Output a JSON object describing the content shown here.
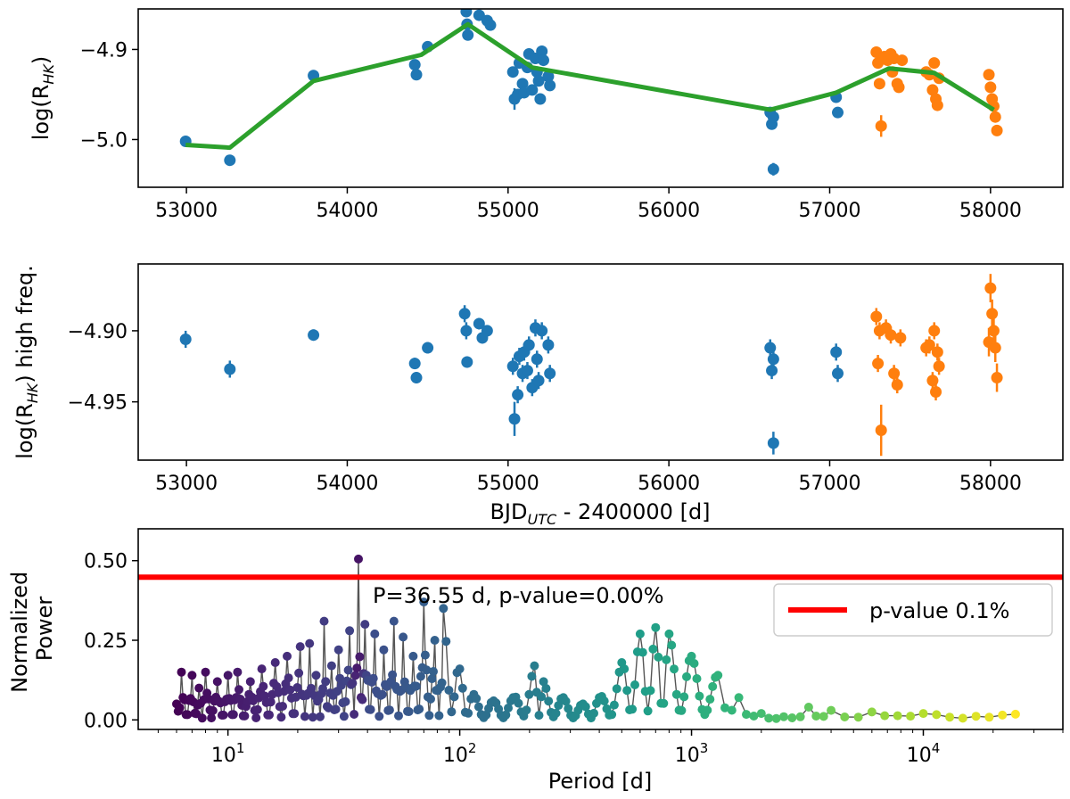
{
  "chart_data": [
    {
      "type": "scatter",
      "panel": "top",
      "ylabel_main": "log(R",
      "ylabel_sub": "HK",
      "ylabel_end": ")",
      "xlim": [
        52700,
        58450
      ],
      "ylim": [
        -5.053,
        -4.855
      ],
      "xticks": [
        53000,
        54000,
        55000,
        56000,
        57000,
        58000
      ],
      "xtick_labels": [
        "53000",
        "54000",
        "55000",
        "56000",
        "57000",
        "58000"
      ],
      "yticks": [
        -5.0,
        -4.9
      ],
      "ytick_labels": [
        "−5.0",
        "−4.9"
      ],
      "grid": false,
      "series": [
        {
          "color": "#1f77b4",
          "points": [
            [
              52995,
              -5.002,
              0.006
            ],
            [
              53270,
              -5.023,
              0.004
            ],
            [
              53790,
              -4.929,
              0.004
            ],
            [
              54420,
              -4.917,
              0.004
            ],
            [
              54430,
              -4.928,
              0.004
            ],
            [
              54500,
              -4.897,
              0.004
            ],
            [
              54730,
              -4.85,
              0.004
            ],
            [
              54740,
              -4.858,
              0.004
            ],
            [
              54745,
              -4.872,
              0.004
            ],
            [
              54750,
              -4.884,
              0.004
            ],
            [
              54820,
              -4.862,
              0.004
            ],
            [
              54870,
              -4.868,
              0.004
            ],
            [
              54890,
              -4.873,
              0.004
            ],
            [
              55030,
              -4.925,
              0.006
            ],
            [
              55040,
              -4.955,
              0.012
            ],
            [
              55060,
              -4.95,
              0.006
            ],
            [
              55070,
              -4.915,
              0.006
            ],
            [
              55090,
              -4.938,
              0.006
            ],
            [
              55100,
              -4.948,
              0.006
            ],
            [
              55120,
              -4.92,
              0.006
            ],
            [
              55130,
              -4.905,
              0.006
            ],
            [
              55150,
              -4.945,
              0.006
            ],
            [
              55170,
              -4.91,
              0.006
            ],
            [
              55180,
              -4.925,
              0.006
            ],
            [
              55190,
              -4.935,
              0.006
            ],
            [
              55200,
              -4.955,
              0.006
            ],
            [
              55210,
              -4.902,
              0.006
            ],
            [
              55220,
              -4.912,
              0.006
            ],
            [
              55250,
              -4.93,
              0.006
            ],
            [
              55260,
              -4.94,
              0.006
            ],
            [
              56630,
              -4.97,
              0.005
            ],
            [
              56640,
              -4.983,
              0.005
            ],
            [
              56650,
              -4.975,
              0.005
            ],
            [
              56650,
              -5.033,
              0.007
            ],
            [
              57040,
              -4.953,
              0.004
            ],
            [
              57050,
              -4.97,
              0.004
            ]
          ]
        },
        {
          "color": "#ff7f0e",
          "points": [
            [
              57290,
              -4.903,
              0.004
            ],
            [
              57300,
              -4.915,
              0.004
            ],
            [
              57310,
              -4.938,
              0.004
            ],
            [
              57320,
              -4.985,
              0.012
            ],
            [
              57340,
              -4.908,
              0.004
            ],
            [
              57360,
              -4.912,
              0.004
            ],
            [
              57380,
              -4.905,
              0.004
            ],
            [
              57390,
              -4.925,
              0.004
            ],
            [
              57400,
              -4.91,
              0.004
            ],
            [
              57420,
              -4.938,
              0.004
            ],
            [
              57430,
              -4.942,
              0.004
            ],
            [
              57450,
              -4.912,
              0.004
            ],
            [
              57600,
              -4.925,
              0.004
            ],
            [
              57620,
              -4.928,
              0.004
            ],
            [
              57640,
              -4.945,
              0.004
            ],
            [
              57650,
              -4.915,
              0.004
            ],
            [
              57660,
              -4.955,
              0.004
            ],
            [
              57670,
              -4.962,
              0.004
            ],
            [
              57680,
              -4.932,
              0.004
            ],
            [
              57990,
              -4.928,
              0.006
            ],
            [
              58000,
              -4.942,
              0.006
            ],
            [
              58010,
              -4.955,
              0.006
            ],
            [
              58020,
              -4.963,
              0.006
            ],
            [
              58030,
              -4.975,
              0.006
            ],
            [
              58040,
              -4.99,
              0.006
            ]
          ]
        },
        {
          "type": "line",
          "color": "#2ca02c",
          "points": [
            [
              52995,
              -5.006
            ],
            [
              53270,
              -5.009
            ],
            [
              53790,
              -4.935
            ],
            [
              54460,
              -4.906
            ],
            [
              54750,
              -4.872
            ],
            [
              55150,
              -4.92
            ],
            [
              56630,
              -4.967
            ],
            [
              57040,
              -4.948
            ],
            [
              57370,
              -4.921
            ],
            [
              57650,
              -4.926
            ],
            [
              58020,
              -4.967
            ]
          ]
        }
      ]
    },
    {
      "type": "scatter",
      "panel": "middle",
      "ylabel_main": "log(R",
      "ylabel_sub": "HK",
      "ylabel_end": ") high freq.",
      "xlabel_main": "BJD",
      "xlabel_sub": "UTC",
      "xlabel_end": " - 2400000 [d]",
      "xlim": [
        52700,
        58450
      ],
      "ylim": [
        -4.991,
        -4.853
      ],
      "xticks": [
        53000,
        54000,
        55000,
        56000,
        57000,
        58000
      ],
      "xtick_labels": [
        "53000",
        "54000",
        "55000",
        "56000",
        "57000",
        "58000"
      ],
      "yticks": [
        -4.95,
        -4.9
      ],
      "ytick_labels": [
        "−4.95",
        "−4.90"
      ],
      "grid": false,
      "series": [
        {
          "color": "#1f77b4",
          "points": [
            [
              52995,
              -4.906,
              0.006
            ],
            [
              53270,
              -4.927,
              0.006
            ],
            [
              53790,
              -4.903,
              0.004
            ],
            [
              54420,
              -4.923,
              0.004
            ],
            [
              54430,
              -4.933,
              0.004
            ],
            [
              54500,
              -4.912,
              0.004
            ],
            [
              54730,
              -4.888,
              0.006
            ],
            [
              54740,
              -4.9,
              0.006
            ],
            [
              54745,
              -4.922,
              0.004
            ],
            [
              54820,
              -4.895,
              0.004
            ],
            [
              54840,
              -4.905,
              0.004
            ],
            [
              54870,
              -4.9,
              0.004
            ],
            [
              55030,
              -4.925,
              0.006
            ],
            [
              55040,
              -4.962,
              0.012
            ],
            [
              55060,
              -4.945,
              0.006
            ],
            [
              55070,
              -4.918,
              0.006
            ],
            [
              55090,
              -4.93,
              0.006
            ],
            [
              55100,
              -4.915,
              0.006
            ],
            [
              55120,
              -4.928,
              0.006
            ],
            [
              55130,
              -4.91,
              0.006
            ],
            [
              55150,
              -4.94,
              0.006
            ],
            [
              55170,
              -4.898,
              0.006
            ],
            [
              55180,
              -4.92,
              0.006
            ],
            [
              55190,
              -4.935,
              0.006
            ],
            [
              55210,
              -4.9,
              0.006
            ],
            [
              55250,
              -4.91,
              0.006
            ],
            [
              55260,
              -4.93,
              0.006
            ],
            [
              56630,
              -4.912,
              0.006
            ],
            [
              56640,
              -4.928,
              0.006
            ],
            [
              56650,
              -4.92,
              0.006
            ],
            [
              56650,
              -4.979,
              0.008
            ],
            [
              57040,
              -4.915,
              0.006
            ],
            [
              57050,
              -4.93,
              0.006
            ]
          ]
        },
        {
          "color": "#ff7f0e",
          "points": [
            [
              57290,
              -4.89,
              0.006
            ],
            [
              57300,
              -4.923,
              0.006
            ],
            [
              57310,
              -4.9,
              0.006
            ],
            [
              57320,
              -4.97,
              0.018
            ],
            [
              57350,
              -4.898,
              0.006
            ],
            [
              57380,
              -4.903,
              0.006
            ],
            [
              57400,
              -4.93,
              0.006
            ],
            [
              57420,
              -4.938,
              0.006
            ],
            [
              57440,
              -4.905,
              0.006
            ],
            [
              57600,
              -4.912,
              0.006
            ],
            [
              57620,
              -4.91,
              0.006
            ],
            [
              57640,
              -4.935,
              0.006
            ],
            [
              57650,
              -4.9,
              0.006
            ],
            [
              57660,
              -4.943,
              0.006
            ],
            [
              57670,
              -4.915,
              0.006
            ],
            [
              57680,
              -4.925,
              0.006
            ],
            [
              57990,
              -4.908,
              0.01
            ],
            [
              58000,
              -4.87,
              0.01
            ],
            [
              58010,
              -4.888,
              0.01
            ],
            [
              58020,
              -4.9,
              0.01
            ],
            [
              58030,
              -4.912,
              0.01
            ],
            [
              58040,
              -4.933,
              0.01
            ]
          ]
        }
      ]
    },
    {
      "type": "scatter",
      "panel": "bottom",
      "xscale": "log",
      "ylabel_lines": [
        "Normalized",
        "Power"
      ],
      "xlabel": "Period [d]",
      "xlim": [
        4.1,
        40000
      ],
      "ylim": [
        -0.03,
        0.6
      ],
      "xticks": [
        10,
        100,
        1000,
        10000
      ],
      "xtick_labels": [
        {
          "base": "10",
          "exp": "1"
        },
        {
          "base": "10",
          "exp": "2"
        },
        {
          "base": "10",
          "exp": "3"
        },
        {
          "base": "10",
          "exp": "4"
        }
      ],
      "yticks": [
        0.0,
        0.25,
        0.5
      ],
      "ytick_labels": [
        "0.00",
        "0.25",
        "0.50"
      ],
      "grid": false,
      "threshold": {
        "y": 0.448,
        "color": "#ff0000"
      },
      "annotation": "P=36.55 d, p-value=0.00%",
      "legend": {
        "label": "p-value 0.1%",
        "position": "center-right",
        "color": "#ff0000"
      },
      "colormap": "viridis",
      "peaks": [
        [
          6,
          0.05
        ],
        [
          6.3,
          0.15
        ],
        [
          7,
          0.14
        ],
        [
          7.5,
          0.1
        ],
        [
          8,
          0.15
        ],
        [
          9,
          0.12
        ],
        [
          10,
          0.14
        ],
        [
          11,
          0.15
        ],
        [
          12.5,
          0.12
        ],
        [
          14,
          0.16
        ],
        [
          16,
          0.18
        ],
        [
          18,
          0.2
        ],
        [
          20.5,
          0.23
        ],
        [
          22.5,
          0.24
        ],
        [
          24,
          0.14
        ],
        [
          26,
          0.31
        ],
        [
          28,
          0.17
        ],
        [
          30,
          0.22
        ],
        [
          33.5,
          0.28
        ],
        [
          36.55,
          0.505
        ],
        [
          39,
          0.3
        ],
        [
          43,
          0.27
        ],
        [
          47,
          0.22
        ],
        [
          52,
          0.31
        ],
        [
          57,
          0.26
        ],
        [
          63,
          0.2
        ],
        [
          70,
          0.37
        ],
        [
          78,
          0.25
        ],
        [
          85,
          0.35
        ],
        [
          100,
          0.16
        ],
        [
          115,
          0.08
        ],
        [
          140,
          0.06
        ],
        [
          170,
          0.07
        ],
        [
          210,
          0.17
        ],
        [
          230,
          0.12
        ],
        [
          280,
          0.07
        ],
        [
          340,
          0.05
        ],
        [
          400,
          0.07
        ],
        [
          500,
          0.18
        ],
        [
          600,
          0.27
        ],
        [
          700,
          0.29
        ],
        [
          800,
          0.27
        ],
        [
          1000,
          0.2
        ],
        [
          1300,
          0.14
        ],
        [
          1600,
          0.07
        ],
        [
          2000,
          0.02
        ],
        [
          2500,
          0.01
        ],
        [
          3200,
          0.04
        ],
        [
          4000,
          0.03
        ],
        [
          6000,
          0.025
        ],
        [
          10000,
          0.02
        ],
        [
          25000,
          0.018
        ]
      ]
    }
  ]
}
